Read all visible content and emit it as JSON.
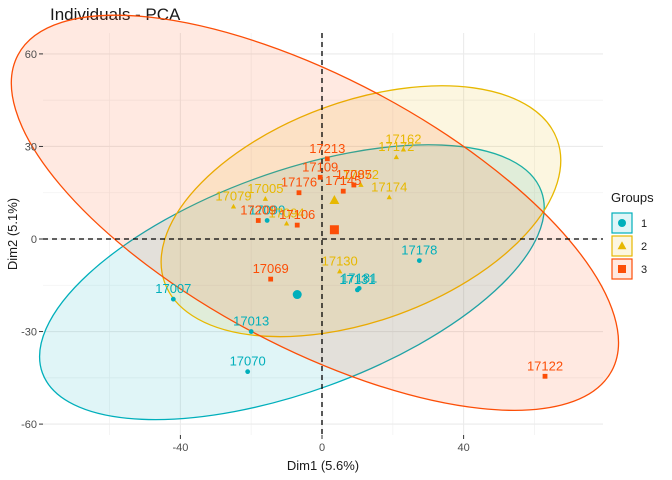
{
  "chart_data": {
    "type": "scatter",
    "title": "Individuals - PCA",
    "xlabel": "Dim1 (5.6%)",
    "ylabel": "Dim2 (5.1%)",
    "xlim": [
      -74,
      63
    ],
    "ylim": [
      -64,
      64
    ],
    "x_ticks": [
      -40,
      0,
      40
    ],
    "y_ticks": [
      -60,
      -30,
      0,
      30,
      60
    ],
    "grid": true,
    "legend": {
      "title": "Groups",
      "position": "right"
    },
    "groups": [
      {
        "name": "1",
        "color": "#00AFBB",
        "shape": "circle",
        "centroid": [
          -7,
          -18
        ],
        "ellipse": {
          "cx": -8.5,
          "cy": -14,
          "rx": 75,
          "ry": 31,
          "angle_deg": 20
        },
        "points": [
          {
            "label": "17007",
            "x": -42,
            "y": -19.5
          },
          {
            "label": "17013",
            "x": -20,
            "y": -30
          },
          {
            "label": "17070",
            "x": -21,
            "y": -43
          },
          {
            "label": "17178",
            "x": 27.5,
            "y": -7
          },
          {
            "label": "17181",
            "x": 10.5,
            "y": -16
          },
          {
            "label": "17131",
            "x": 10,
            "y": -16.5
          },
          {
            "label": "17090",
            "x": -15.5,
            "y": 6
          }
        ]
      },
      {
        "name": "2",
        "color": "#E7B800",
        "shape": "triangle",
        "centroid": [
          3.5,
          12.5
        ],
        "ellipse": {
          "cx": 11,
          "cy": 9,
          "rx": 59,
          "ry": 31,
          "angle_deg": 20
        },
        "points": [
          {
            "label": "17162",
            "x": 23,
            "y": 29
          },
          {
            "label": "17172",
            "x": 21,
            "y": 26.5
          },
          {
            "label": "17072",
            "x": 11,
            "y": 17.5
          },
          {
            "label": "17174",
            "x": 19,
            "y": 13.5
          },
          {
            "label": "17079",
            "x": -25,
            "y": 10.5
          },
          {
            "label": "17005",
            "x": -16,
            "y": 13
          },
          {
            "label": "17130",
            "x": 5,
            "y": -10.5
          },
          {
            "label": "17094",
            "x": -10,
            "y": 5
          }
        ]
      },
      {
        "name": "3",
        "color": "#FC4E07",
        "shape": "square",
        "centroid": [
          3.5,
          3
        ],
        "ellipse": {
          "cx": -2,
          "cy": 8.5,
          "rx": 95,
          "ry": 38,
          "angle_deg": -28
        },
        "points": [
          {
            "label": "17213",
            "x": 1.5,
            "y": 26
          },
          {
            "label": "17109",
            "x": -0.5,
            "y": 20
          },
          {
            "label": "17176",
            "x": -6.5,
            "y": 15
          },
          {
            "label": "17145",
            "x": 6,
            "y": 15.5
          },
          {
            "label": "17085",
            "x": 9,
            "y": 17.5
          },
          {
            "label": "17209",
            "x": -18,
            "y": 6
          },
          {
            "label": "17106",
            "x": -7,
            "y": 4.5
          },
          {
            "label": "17069",
            "x": -14.5,
            "y": -13
          },
          {
            "label": "17122",
            "x": 63,
            "y": -44.5
          }
        ]
      }
    ]
  }
}
